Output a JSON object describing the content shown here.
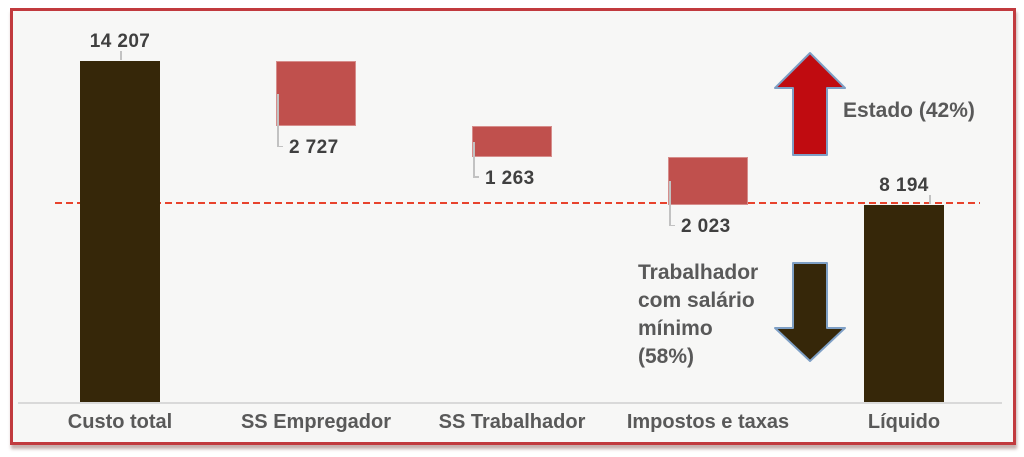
{
  "colors": {
    "frame_border": "#c13a3e",
    "chart_background": "#f7f7f6",
    "page_background": "#ffffff",
    "dashed_reference_line": "#e8432d",
    "axis_line": "#d9d9d9",
    "value_label_text": "#404040",
    "category_label_text": "#595959",
    "annotation_text": "#595959",
    "leader_line": "#c2c2c2",
    "dark_bar": "#362709",
    "red_bar": "#c0504d",
    "arrow_up_fill": "#c00b10",
    "arrow_down_fill": "#362709",
    "arrow_outline": "#7e9fc5"
  },
  "chart_data": {
    "type": "bar",
    "subtype": "waterfall",
    "title": "",
    "xlabel": "",
    "ylabel": "",
    "grid": false,
    "legend": false,
    "ylim": [
      0,
      14207
    ],
    "categories": [
      "Custo total",
      "SS Empregador",
      "SS Trabalhador",
      "Impostos e taxas",
      "Líquido"
    ],
    "bars": [
      {
        "category": "Custo total",
        "value": 14207,
        "display_value": "14 207",
        "role": "total",
        "color": "#362709",
        "label_position": "above"
      },
      {
        "category": "SS Empregador",
        "value": -2727,
        "display_value": "2 727",
        "role": "decrease",
        "color": "#c0504d",
        "label_position": "below-with-leader"
      },
      {
        "category": "SS Trabalhador",
        "value": -1263,
        "display_value": "1 263",
        "role": "decrease",
        "color": "#c0504d",
        "label_position": "below-with-leader"
      },
      {
        "category": "Impostos e taxas",
        "value": -2023,
        "display_value": "2 023",
        "role": "decrease",
        "color": "#c0504d",
        "label_position": "below-with-leader"
      },
      {
        "category": "Líquido",
        "value": 8194,
        "display_value": "8 194",
        "role": "result",
        "color": "#362709",
        "label_position": "above"
      }
    ],
    "reference_line": {
      "value": 8194,
      "style": "dashed",
      "color": "#e8432d"
    }
  },
  "annotations": {
    "estado": {
      "text": "Estado (42%)",
      "arrow_direction": "up",
      "arrow_fill": "#c00b10",
      "arrow_outline": "#7e9fc5"
    },
    "trabalhador": {
      "text": "Trabalhador com salário mínimo (58%)",
      "text_lines": [
        "Trabalhador",
        "com salário",
        "mínimo",
        "(58%)"
      ],
      "arrow_direction": "down",
      "arrow_fill": "#362709",
      "arrow_outline": "#7e9fc5"
    }
  }
}
